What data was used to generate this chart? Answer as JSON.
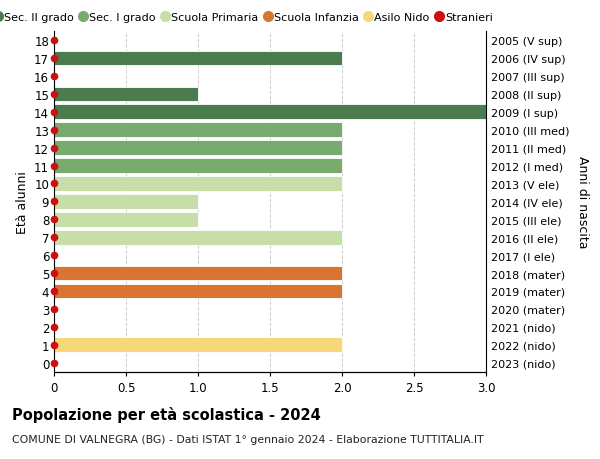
{
  "ages": [
    18,
    17,
    16,
    15,
    14,
    13,
    12,
    11,
    10,
    9,
    8,
    7,
    6,
    5,
    4,
    3,
    2,
    1,
    0
  ],
  "right_labels": [
    "2005 (V sup)",
    "2006 (IV sup)",
    "2007 (III sup)",
    "2008 (II sup)",
    "2009 (I sup)",
    "2010 (III med)",
    "2011 (II med)",
    "2012 (I med)",
    "2013 (V ele)",
    "2014 (IV ele)",
    "2015 (III ele)",
    "2016 (II ele)",
    "2017 (I ele)",
    "2018 (mater)",
    "2019 (mater)",
    "2020 (mater)",
    "2021 (nido)",
    "2022 (nido)",
    "2023 (nido)"
  ],
  "bar_data": [
    {
      "age": 18,
      "value": 0,
      "color": "#4a7c4e"
    },
    {
      "age": 17,
      "value": 2,
      "color": "#4a7c4e"
    },
    {
      "age": 16,
      "value": 0,
      "color": "#4a7c4e"
    },
    {
      "age": 15,
      "value": 1,
      "color": "#4a7c4e"
    },
    {
      "age": 14,
      "value": 3,
      "color": "#4a7c4e"
    },
    {
      "age": 13,
      "value": 2,
      "color": "#7aab6e"
    },
    {
      "age": 12,
      "value": 2,
      "color": "#7aab6e"
    },
    {
      "age": 11,
      "value": 2,
      "color": "#7aab6e"
    },
    {
      "age": 10,
      "value": 2,
      "color": "#c8dea8"
    },
    {
      "age": 9,
      "value": 1,
      "color": "#c8dea8"
    },
    {
      "age": 8,
      "value": 1,
      "color": "#c8dea8"
    },
    {
      "age": 7,
      "value": 2,
      "color": "#c8dea8"
    },
    {
      "age": 6,
      "value": 0,
      "color": "#c8dea8"
    },
    {
      "age": 5,
      "value": 2,
      "color": "#d97530"
    },
    {
      "age": 4,
      "value": 2,
      "color": "#d97530"
    },
    {
      "age": 3,
      "value": 0,
      "color": "#d97530"
    },
    {
      "age": 2,
      "value": 0,
      "color": "#f5d878"
    },
    {
      "age": 1,
      "value": 2,
      "color": "#f5d878"
    },
    {
      "age": 0,
      "value": 0,
      "color": "#f5d878"
    }
  ],
  "stranieri_dot_color": "#cc1111",
  "colors": {
    "sec_ii": "#4a7c4e",
    "sec_i": "#7aab6e",
    "primaria": "#c8dea8",
    "infanzia": "#d97530",
    "nido": "#f5d878",
    "stranieri": "#cc1111"
  },
  "legend_labels": [
    "Sec. II grado",
    "Sec. I grado",
    "Scuola Primaria",
    "Scuola Infanzia",
    "Asilo Nido",
    "Stranieri"
  ],
  "ylabel_left": "Età alunni",
  "ylabel_right": "Anni di nascita",
  "xlim": [
    0,
    3.0
  ],
  "xticks": [
    0,
    0.5,
    1.0,
    1.5,
    2.0,
    2.5,
    3.0
  ],
  "title": "Popolazione per età scolastica - 2024",
  "subtitle": "COMUNE DI VALNEGRA (BG) - Dati ISTAT 1° gennaio 2024 - Elaborazione TUTTITALIA.IT",
  "bar_height": 0.82,
  "grid_color": "#cccccc"
}
